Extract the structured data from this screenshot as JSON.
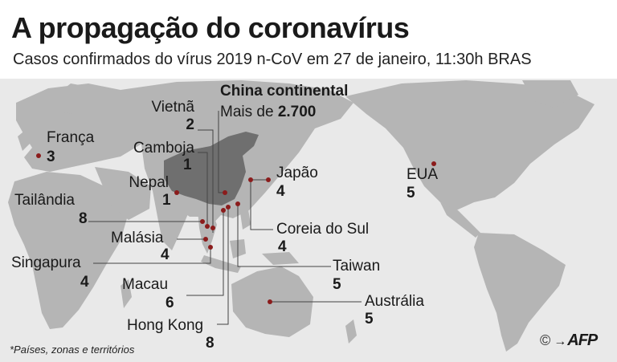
{
  "title": "A propagação do coronavírus",
  "subtitle": "Casos confirmados do vírus 2019 n-CoV em 27 de janeiro, 11:30h BRAS",
  "colors": {
    "land": "#b5b5b5",
    "ocean": "#e9e9e9",
    "china": "#6f6f6f",
    "marker": "#8b1c1c",
    "leader": "#444444"
  },
  "locations": {
    "china": {
      "name": "China continental",
      "prefix": "Mais de ",
      "value": "2.700"
    },
    "vietna": {
      "name": "Vietnã",
      "value": "2"
    },
    "camboja": {
      "name": "Camboja",
      "value": "1"
    },
    "franca": {
      "name": "França",
      "value": "3"
    },
    "nepal": {
      "name": "Nepal",
      "value": "1"
    },
    "tailandia": {
      "name": "Tailândia",
      "value": "8"
    },
    "malasia": {
      "name": "Malásia",
      "value": "4"
    },
    "singapura": {
      "name": "Singapura",
      "value": "4"
    },
    "macau": {
      "name": "Macau",
      "value": "6"
    },
    "hongkong": {
      "name": "Hong Kong",
      "value": "8"
    },
    "japao": {
      "name": "Japão",
      "value": "4"
    },
    "coreia": {
      "name": "Coreia do Sul",
      "value": "4"
    },
    "taiwan": {
      "name": "Taiwan",
      "value": "5"
    },
    "australia": {
      "name": "Austrália",
      "value": "5"
    },
    "eua": {
      "name": "EUA",
      "value": "5"
    }
  },
  "footnote": "*Países, zonas e territórios",
  "credit": {
    "copyright": "©",
    "agency": "AFP"
  }
}
